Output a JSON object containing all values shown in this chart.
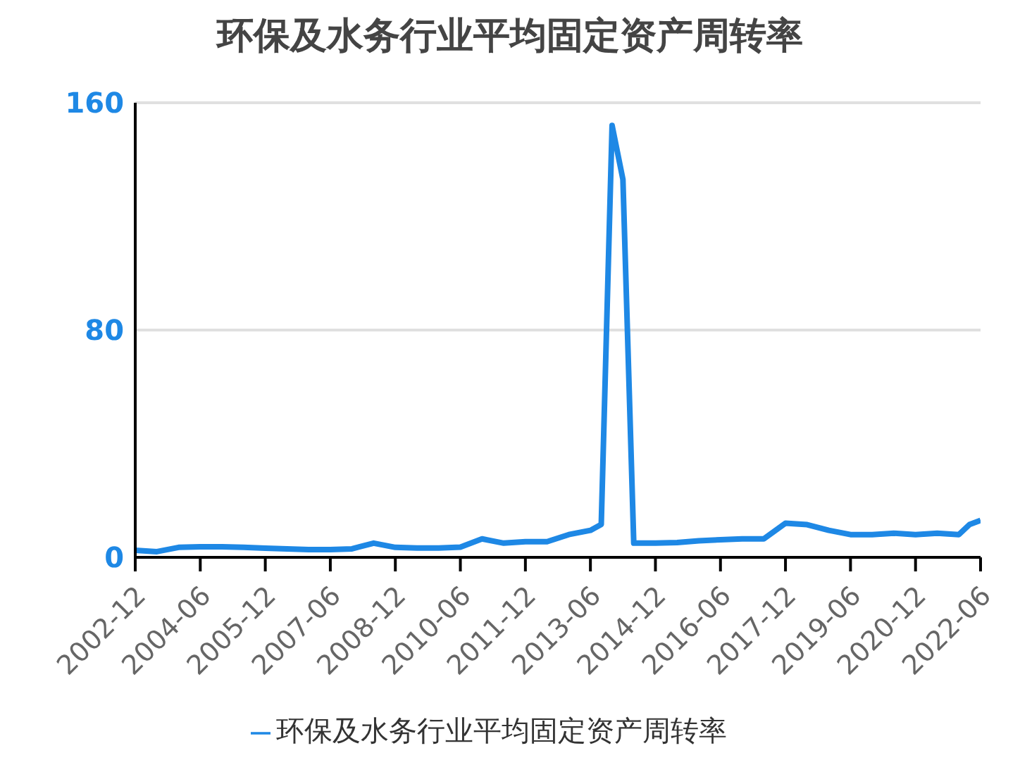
{
  "chart_data": {
    "type": "line",
    "title": "环保及水务行业平均固定资产周转率",
    "x": [
      "2002-12",
      "2003-06",
      "2003-12",
      "2004-06",
      "2004-12",
      "2005-06",
      "2005-12",
      "2006-06",
      "2006-12",
      "2007-06",
      "2007-12",
      "2008-06",
      "2008-12",
      "2009-06",
      "2009-12",
      "2010-06",
      "2010-12",
      "2011-06",
      "2011-12",
      "2012-06",
      "2012-12",
      "2013-06",
      "2013-09",
      "2013-12",
      "2014-03",
      "2014-06",
      "2014-12",
      "2015-06",
      "2015-12",
      "2016-06",
      "2016-12",
      "2017-06",
      "2017-12",
      "2018-06",
      "2018-12",
      "2019-06",
      "2019-12",
      "2020-06",
      "2020-12",
      "2021-06",
      "2021-12",
      "2022-03",
      "2022-06"
    ],
    "series": [
      {
        "name": "环保及水务行业平均固定资产周转率",
        "color": "#1e88e5",
        "values": [
          2.5,
          2,
          3.5,
          3.7,
          3.7,
          3.5,
          3.2,
          3,
          2.7,
          2.7,
          3,
          5,
          3.5,
          3.3,
          3.3,
          3.6,
          6.5,
          5,
          5.5,
          5.5,
          8,
          9.5,
          11.6,
          152,
          133,
          5,
          5,
          5.2,
          5.8,
          6.2,
          6.5,
          6.5,
          12,
          11.5,
          9.5,
          8,
          8,
          8.5,
          8,
          8.5,
          8,
          11.6,
          13
        ]
      }
    ],
    "xlim": [
      "2002-12",
      "2022-06"
    ],
    "xticks": [
      "2002-12",
      "2004-06",
      "2005-12",
      "2007-06",
      "2008-12",
      "2010-06",
      "2011-12",
      "2013-06",
      "2014-12",
      "2016-06",
      "2017-12",
      "2019-06",
      "2020-12",
      "2022-06"
    ],
    "ylim": [
      0,
      160
    ],
    "yticks": [
      0,
      80,
      160
    ],
    "grid": "y",
    "legend": "bottom",
    "marker": "none",
    "line_style": "solid"
  }
}
